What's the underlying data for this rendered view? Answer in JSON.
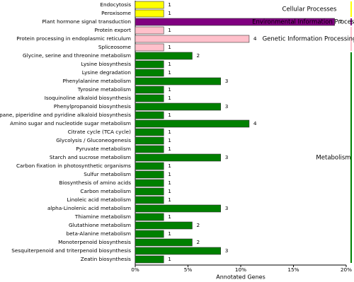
{
  "chart_data": {
    "type": "bar",
    "x_label": "Annotated Genes",
    "xlim": [
      0,
      20
    ],
    "xticks": [
      {
        "value": 0,
        "label": "0%"
      },
      {
        "value": 5,
        "label": "5%"
      },
      {
        "value": 10,
        "label": "10%"
      },
      {
        "value": 15,
        "label": "15%"
      },
      {
        "value": 20,
        "label": "20%"
      }
    ],
    "groups": [
      {
        "name": "Cellular Processes",
        "color": "#ffff00",
        "categories": [
          "Endocytosis",
          "Peroxisome"
        ],
        "values": [
          2.7,
          2.7
        ],
        "counts": [
          1,
          1
        ]
      },
      {
        "name": "Environmental Information Processing",
        "color": "#800080",
        "categories": [
          "Plant hormone signal transduction"
        ],
        "values": [
          18.9
        ],
        "counts": [
          7
        ]
      },
      {
        "name": "Genetic Information Processing",
        "color": "#ffc0cb",
        "categories": [
          "Protein export",
          "Protein processing in endoplasmic reticulum",
          "Spliceosome"
        ],
        "values": [
          2.7,
          10.8,
          2.7
        ],
        "counts": [
          1,
          4,
          1
        ]
      },
      {
        "name": "Metabolism",
        "color": "#008000",
        "categories": [
          "Glycine, serine and threonine metabolism",
          "Lysine biosynthesis",
          "Lysine degradation",
          "Phenylalanine metabolism",
          "Tyrosine metabolism",
          "Isoquinoline alkaloid biosynthesis",
          "Phenylpropanoid biosynthesis",
          "Tropane, piperidine and pyridine alkaloid biosynthesis",
          "Amino sugar and nucleotide sugar metabolism",
          "Citrate cycle (TCA cycle)",
          "Glycolysis / Gluconeogenesis",
          "Pyruvate metabolism",
          "Starch and sucrose metabolism",
          "Carbon fixation in photosynthetic organisms",
          "Sulfur metabolism",
          "Biosynthesis of amino acids",
          "Carbon metabolism",
          "Linoleic acid metabolism",
          "alpha-Linolenic acid metabolism",
          "Thiamine metabolism",
          "Glutathione metabolism",
          "beta-Alanine metabolism",
          "Monoterpenoid biosynthesis",
          "Sesquiterpenoid and triterpenoid biosynthesis",
          "Zeatin biosynthesis"
        ],
        "values": [
          5.4,
          2.7,
          2.7,
          8.1,
          2.7,
          2.7,
          8.1,
          2.7,
          10.8,
          2.7,
          2.7,
          2.7,
          8.1,
          2.7,
          2.7,
          2.7,
          2.7,
          2.7,
          8.1,
          2.7,
          5.4,
          2.7,
          5.4,
          8.1,
          2.7
        ],
        "counts": [
          2,
          1,
          1,
          3,
          1,
          1,
          3,
          1,
          4,
          1,
          1,
          1,
          3,
          1,
          1,
          1,
          1,
          1,
          3,
          1,
          2,
          1,
          2,
          3,
          1
        ]
      }
    ]
  }
}
